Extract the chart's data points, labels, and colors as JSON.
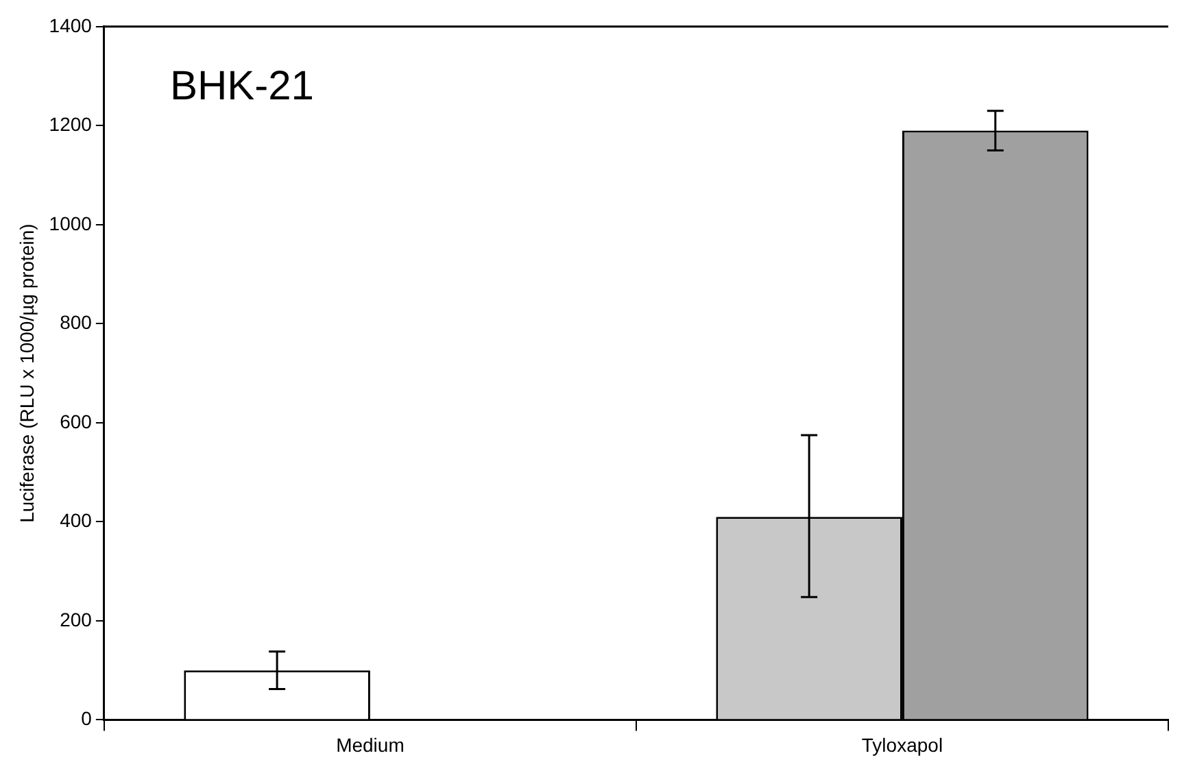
{
  "chart_data": {
    "type": "bar",
    "ylabel": "Luciferase (RLU x 1000/µg protein)",
    "annotations": [
      "BHK-21"
    ],
    "categories": [
      "Medium",
      "Tyloxapol"
    ],
    "series": [
      {
        "colors": [
          "#ffffff",
          "#c8c8c8"
        ],
        "values": [
          100,
          410
        ],
        "errors": [
          38,
          [
            248,
            575
          ]
        ]
      },
      {
        "color": "#a0a0a0",
        "values": [
          null,
          1190
        ],
        "errors": [
          null,
          40
        ]
      }
    ],
    "ylim": [
      0,
      1400
    ],
    "yticks": [
      0,
      200,
      400,
      600,
      800,
      1000,
      1200,
      1400
    ],
    "grid": false,
    "legend": false
  }
}
